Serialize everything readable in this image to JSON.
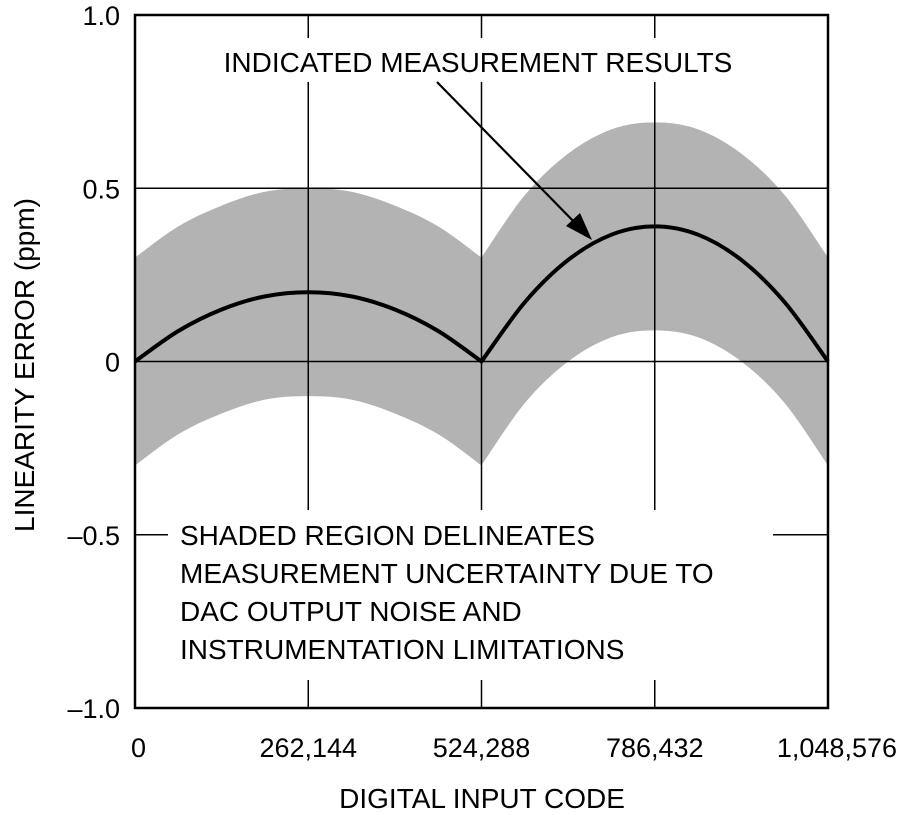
{
  "chart_data": {
    "type": "line",
    "xlabel": "DIGITAL INPUT CODE",
    "ylabel": "LINEARITY ERROR (ppm)",
    "xlim": [
      0,
      1048576
    ],
    "ylim": [
      -1.0,
      1.0
    ],
    "x_ticks": [
      0,
      262144,
      524288,
      786432,
      1048576
    ],
    "x_tick_labels": [
      "0",
      "262,144",
      "524,288",
      "786,432",
      "1,048,576"
    ],
    "y_ticks": [
      -1.0,
      -0.5,
      0,
      0.5,
      1.0
    ],
    "y_tick_labels": [
      "–1.0",
      "–0.5",
      "0",
      "0.5",
      "1.0"
    ],
    "grid": true,
    "series": [
      {
        "type": "line",
        "x": [
          0,
          65536,
          131072,
          196608,
          262144,
          327680,
          393216,
          458752,
          524288,
          589824,
          655360,
          720896,
          786432,
          851968,
          917504,
          983040,
          1048576
        ],
        "y": [
          0,
          0.088,
          0.15,
          0.188,
          0.2,
          0.188,
          0.15,
          0.088,
          0,
          0.171,
          0.293,
          0.366,
          0.39,
          0.366,
          0.293,
          0.171,
          0
        ]
      },
      {
        "type": "band",
        "x": [
          0,
          65536,
          131072,
          196608,
          262144,
          327680,
          393216,
          458752,
          524288,
          589824,
          655360,
          720896,
          786432,
          851968,
          917504,
          983040,
          1048576
        ],
        "upper": [
          0.3,
          0.39,
          0.45,
          0.49,
          0.5,
          0.49,
          0.45,
          0.39,
          0.3,
          0.48,
          0.6,
          0.67,
          0.69,
          0.67,
          0.6,
          0.48,
          0.3
        ],
        "lower": [
          -0.3,
          -0.21,
          -0.15,
          -0.11,
          -0.1,
          -0.11,
          -0.15,
          -0.21,
          -0.3,
          -0.12,
          0.0,
          0.07,
          0.09,
          0.07,
          0.0,
          -0.12,
          -0.3
        ]
      }
    ],
    "annotations": {
      "top": "INDICATED MEASUREMENT RESULTS",
      "bottom_lines": [
        "SHADED REGION DELINEATES",
        "MEASUREMENT UNCERTAINTY DUE TO",
        "DAC OUTPUT NOISE AND",
        "INSTRUMENTATION LIMITATIONS"
      ]
    },
    "colors": {
      "band": "#b3b3b3",
      "line": "#000000",
      "grid": "#000000"
    }
  }
}
